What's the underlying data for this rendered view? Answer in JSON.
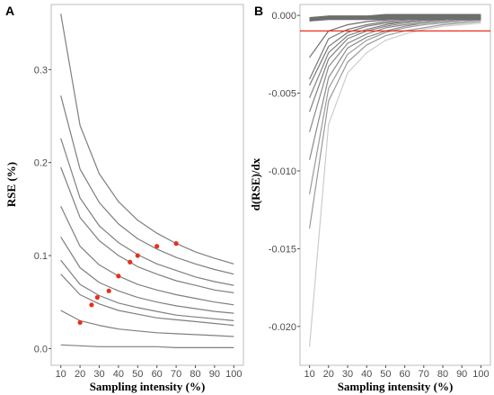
{
  "chart_data": [
    {
      "panel_label": "A",
      "type": "line",
      "xlabel": "Sampling intensity (%)",
      "ylabel": "RSE (%)",
      "x": [
        10,
        20,
        30,
        40,
        50,
        60,
        70,
        80,
        90,
        100
      ],
      "xlim": [
        5,
        105
      ],
      "ylim": [
        -0.018,
        0.37
      ],
      "yticks": [
        0.0,
        0.1,
        0.2,
        0.3
      ],
      "ytick_labels": [
        "0.0",
        "0.1",
        "0.2",
        "0.3"
      ],
      "line_color": "#7f7f7f",
      "marker_color": "#e8301c",
      "series": [
        {
          "values": [
            0.36,
            0.24,
            0.188,
            0.158,
            0.138,
            0.124,
            0.113,
            0.104,
            0.097,
            0.091
          ]
        },
        {
          "values": [
            0.272,
            0.193,
            0.157,
            0.134,
            0.118,
            0.107,
            0.098,
            0.091,
            0.085,
            0.08
          ]
        },
        {
          "values": [
            0.226,
            0.162,
            0.132,
            0.114,
            0.101,
            0.091,
            0.084,
            0.077,
            0.072,
            0.068
          ]
        },
        {
          "values": [
            0.195,
            0.141,
            0.116,
            0.1,
            0.088,
            0.08,
            0.073,
            0.068,
            0.063,
            0.06
          ]
        },
        {
          "values": [
            0.153,
            0.11,
            0.09,
            0.078,
            0.069,
            0.063,
            0.058,
            0.054,
            0.05,
            0.047
          ]
        },
        {
          "values": [
            0.12,
            0.087,
            0.071,
            0.062,
            0.055,
            0.05,
            0.046,
            0.043,
            0.04,
            0.038
          ]
        },
        {
          "values": [
            0.095,
            0.069,
            0.057,
            0.049,
            0.044,
            0.04,
            0.036,
            0.034,
            0.032,
            0.03
          ]
        },
        {
          "values": [
            0.08,
            0.058,
            0.048,
            0.041,
            0.037,
            0.033,
            0.031,
            0.029,
            0.027,
            0.025
          ]
        },
        {
          "values": [
            0.041,
            0.03,
            0.025,
            0.021,
            0.019,
            0.017,
            0.016,
            0.015,
            0.014,
            0.013
          ]
        },
        {
          "values": [
            0.004,
            0.003,
            0.002,
            0.002,
            0.002,
            0.002,
            0.001,
            0.001,
            0.001,
            0.001
          ]
        }
      ],
      "markers": [
        {
          "x": 70,
          "y": 0.113
        },
        {
          "x": 60,
          "y": 0.11
        },
        {
          "x": 50,
          "y": 0.1
        },
        {
          "x": 46,
          "y": 0.093
        },
        {
          "x": 40,
          "y": 0.078
        },
        {
          "x": 35,
          "y": 0.062
        },
        {
          "x": 29,
          "y": 0.055
        },
        {
          "x": 26,
          "y": 0.047
        },
        {
          "x": 20,
          "y": 0.028
        }
      ]
    },
    {
      "panel_label": "B",
      "type": "line",
      "xlabel": "Sampling intensity (%)",
      "ylabel": "d(RSE)/dx",
      "x": [
        10,
        20,
        30,
        40,
        50,
        60,
        70,
        80,
        90,
        100
      ],
      "xlim": [
        5,
        105
      ],
      "ylim": [
        -0.0225,
        0.0007
      ],
      "yticks": [
        0.0,
        -0.005,
        -0.01,
        -0.015,
        -0.02
      ],
      "ytick_labels": [
        "0.000",
        "-0.005",
        "-0.010",
        "-0.015",
        "-0.020"
      ],
      "threshold": -0.001,
      "threshold_color": "#e8301c",
      "thick_line_color": "#7f7f7f",
      "series": [
        {
          "color": "#cccccc",
          "values": [
            -0.0213,
            -0.007,
            -0.0037,
            -0.0024,
            -0.0016,
            -0.0012,
            -0.0009,
            -0.0007,
            -0.0006,
            -0.0005
          ]
        },
        {
          "color": "#9a9a9a",
          "values": [
            -0.0137,
            -0.0055,
            -0.003,
            -0.0019,
            -0.0013,
            -0.001,
            -0.0008,
            -0.0006,
            -0.0005,
            -0.0004
          ]
        },
        {
          "color": "#9a9a9a",
          "values": [
            -0.0115,
            -0.0047,
            -0.0025,
            -0.0016,
            -0.0011,
            -0.0008,
            -0.0006,
            -0.0005,
            -0.0004,
            -0.0003
          ]
        },
        {
          "color": "#8a8a8a",
          "values": [
            -0.0093,
            -0.004,
            -0.0021,
            -0.0014,
            -0.001,
            -0.0007,
            -0.0005,
            -0.0004,
            -0.0003,
            -0.0003
          ]
        },
        {
          "color": "#8a8a8a",
          "values": [
            -0.0075,
            -0.0033,
            -0.0018,
            -0.0012,
            -0.0008,
            -0.0006,
            -0.0005,
            -0.0004,
            -0.0003,
            -0.0002
          ]
        },
        {
          "color": "#808080",
          "values": [
            -0.0062,
            -0.0028,
            -0.0015,
            -0.001,
            -0.0007,
            -0.0005,
            -0.0004,
            -0.0003,
            -0.0002,
            -0.0002
          ]
        },
        {
          "color": "#808080",
          "values": [
            -0.0053,
            -0.0024,
            -0.0013,
            -0.0009,
            -0.0006,
            -0.0004,
            -0.0003,
            -0.0003,
            -0.0002,
            -0.0002
          ]
        },
        {
          "color": "#777777",
          "values": [
            -0.0045,
            -0.002,
            -0.0011,
            -0.0007,
            -0.0005,
            -0.0004,
            -0.0003,
            -0.0002,
            -0.0002,
            -0.0001
          ]
        },
        {
          "color": "#777777",
          "values": [
            -0.0041,
            -0.0015,
            -0.0009,
            -0.0006,
            -0.0004,
            -0.0003,
            -0.0002,
            -0.0002,
            -0.0001,
            -0.0001
          ]
        },
        {
          "color": "#6e6e6e",
          "values": [
            -0.0027,
            -0.001,
            -0.0006,
            -0.0004,
            -0.0003,
            -0.0002,
            -0.0002,
            -0.0001,
            -0.0001,
            -0.0001
          ]
        },
        {
          "color": "#6e6e6e",
          "thick": true,
          "values": [
            -0.0002,
            -0.0001,
            -0.0001,
            -0.0001,
            0.0,
            0.0,
            0.0,
            0.0,
            0.0,
            0.0
          ]
        },
        {
          "color": "#6e6e6e",
          "thick": true,
          "values": [
            -0.0003,
            -0.0001,
            -0.0001,
            -0.0001,
            -0.0001,
            -0.0001,
            -0.0001,
            -0.0001,
            -0.0001,
            -0.0001
          ]
        },
        {
          "color": "#6e6e6e",
          "thick": true,
          "values": [
            -0.0003,
            -0.0002,
            -0.0002,
            -0.0002,
            -0.0002,
            -0.0002,
            -0.0002,
            -0.0002,
            -0.0002,
            -0.0002
          ]
        }
      ]
    }
  ]
}
